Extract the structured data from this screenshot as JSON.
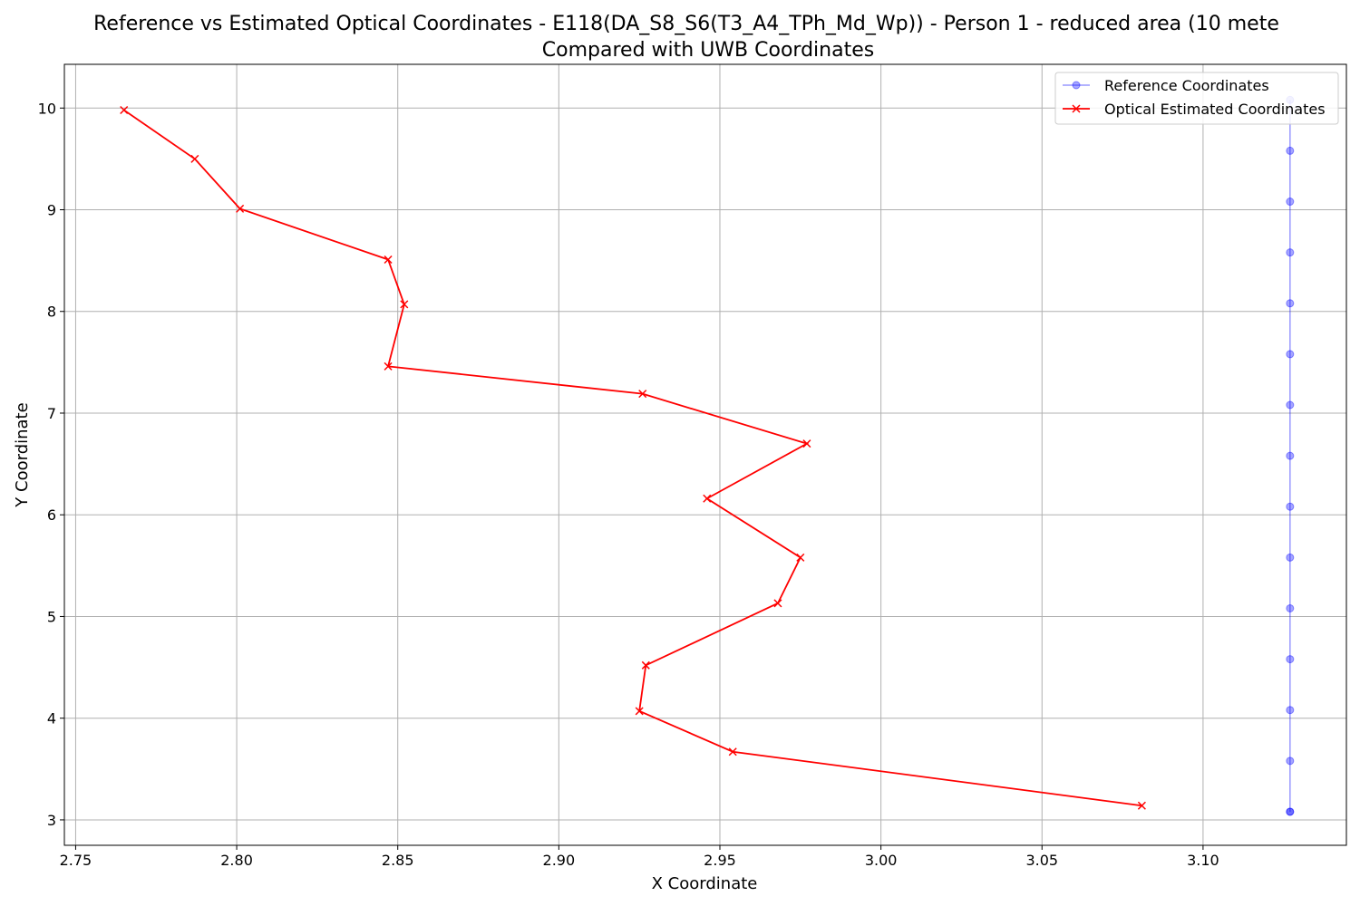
{
  "chart_data": {
    "type": "line",
    "title_line1": "Reference vs Estimated Optical Coordinates - E118(DA_S8_S6(T3_A4_TPh_Md_Wp)) - Person 1 - reduced area (10 mete",
    "title_line2": "Compared with UWB Coordinates",
    "xlabel": "X Coordinate",
    "ylabel": "Y Coordinate",
    "xlim": [
      2.7465,
      3.1445
    ],
    "ylim": [
      2.75,
      10.43
    ],
    "xticks": [
      "2.75",
      "2.80",
      "2.85",
      "2.90",
      "2.95",
      "3.00",
      "3.05",
      "3.10"
    ],
    "xtick_values": [
      2.75,
      2.8,
      2.85,
      2.9,
      2.95,
      3.0,
      3.05,
      3.1
    ],
    "yticks": [
      "3",
      "4",
      "5",
      "6",
      "7",
      "8",
      "9",
      "10"
    ],
    "ytick_values": [
      3,
      4,
      5,
      6,
      7,
      8,
      9,
      10
    ],
    "grid": true,
    "legend_position": "top-right",
    "series": [
      {
        "name": "Reference Coordinates",
        "color": "#0000ff",
        "marker": "circle",
        "x": [
          3.127,
          3.127,
          3.127,
          3.127,
          3.127,
          3.127,
          3.127,
          3.127,
          3.127,
          3.127,
          3.127,
          3.127,
          3.127,
          3.127,
          3.127,
          3.127
        ],
        "y": [
          10.08,
          9.58,
          9.08,
          8.58,
          8.08,
          7.58,
          7.08,
          6.58,
          6.08,
          5.58,
          5.08,
          4.58,
          4.08,
          3.58,
          3.08,
          3.08
        ]
      },
      {
        "name": "Optical Estimated Coordinates",
        "color": "#ff0000",
        "marker": "x",
        "x": [
          2.765,
          2.787,
          2.801,
          2.847,
          2.852,
          2.847,
          2.926,
          2.977,
          2.946,
          2.975,
          2.968,
          2.927,
          2.925,
          2.954,
          3.081
        ],
        "y": [
          9.98,
          9.5,
          9.01,
          8.51,
          8.07,
          7.46,
          7.19,
          6.7,
          6.16,
          5.58,
          5.13,
          4.52,
          4.07,
          3.67,
          3.14
        ]
      }
    ]
  }
}
